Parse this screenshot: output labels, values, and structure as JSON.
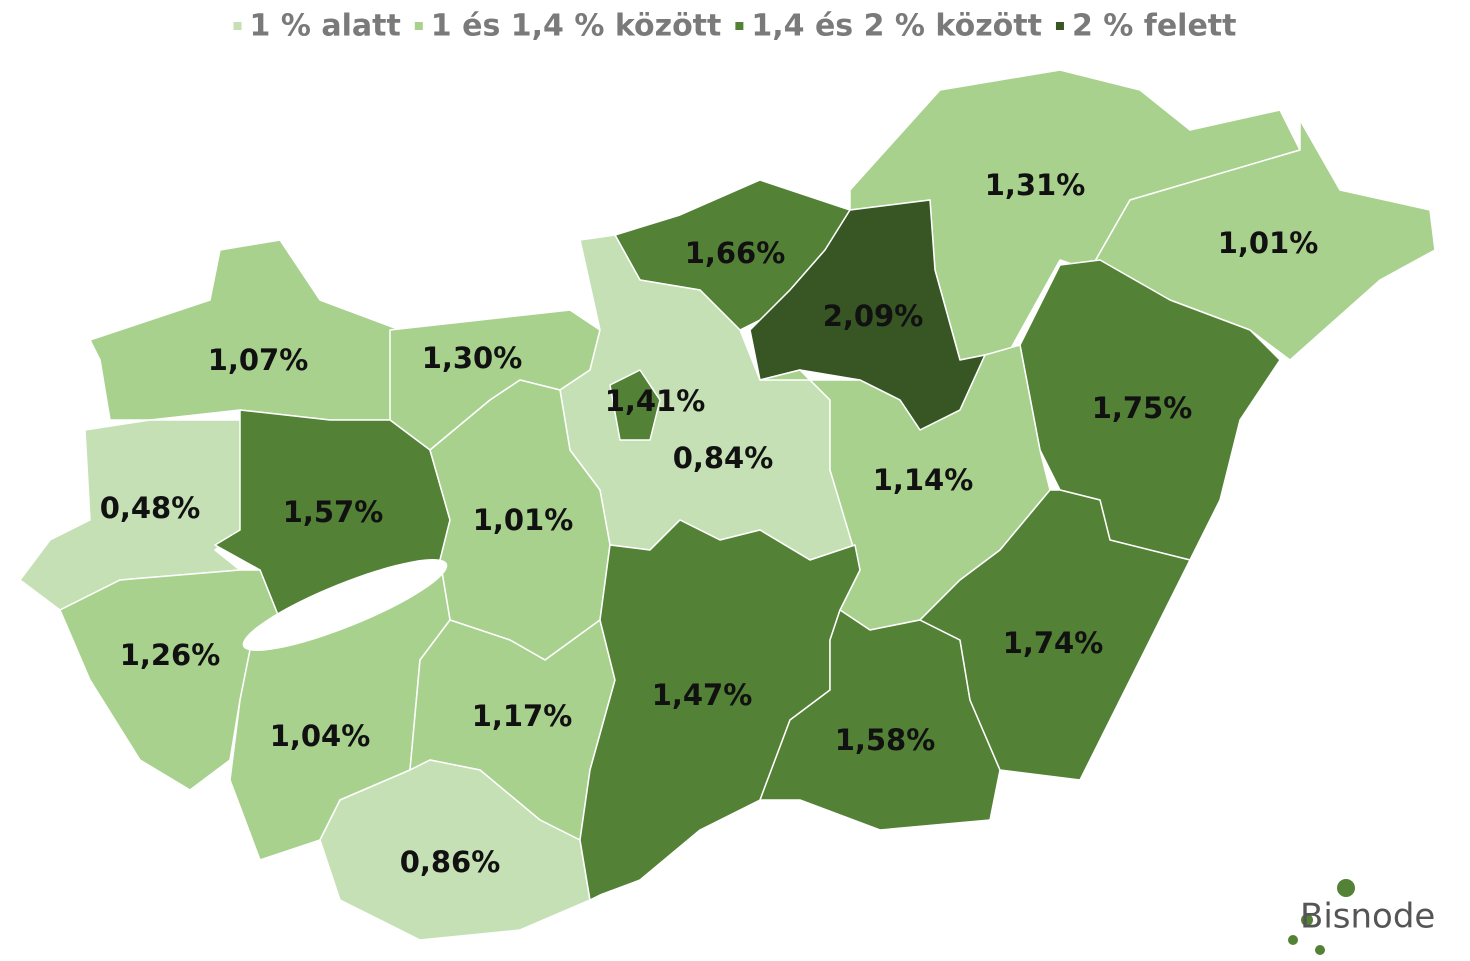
{
  "legend": [
    {
      "label": "1 % alatt",
      "color": "#c5e0b4"
    },
    {
      "label": "1 és 1,4 % között",
      "color": "#a9d18e"
    },
    {
      "label": "1,4 és 2 % között",
      "color": "#538135"
    },
    {
      "label": "2 % felett",
      "color": "#375623"
    }
  ],
  "regions": [
    {
      "label": "1,31%",
      "color": "#a9d18e"
    },
    {
      "label": "1,01%",
      "color": "#a9d18e"
    },
    {
      "label": "1,66%",
      "color": "#538135"
    },
    {
      "label": "2,09%",
      "color": "#375623"
    },
    {
      "label": "1,75%",
      "color": "#538135"
    },
    {
      "label": "1,07%",
      "color": "#a9d18e"
    },
    {
      "label": "1,30%",
      "color": "#a9d18e"
    },
    {
      "label": "0,84%",
      "color": "#c5e0b4"
    },
    {
      "label": "1,41%",
      "color": "#538135"
    },
    {
      "label": "1,14%",
      "color": "#a9d18e"
    },
    {
      "label": "0,48%",
      "color": "#c5e0b4"
    },
    {
      "label": "1,57%",
      "color": "#538135"
    },
    {
      "label": "1,01%",
      "color": "#a9d18e"
    },
    {
      "label": "1,26%",
      "color": "#a9d18e"
    },
    {
      "label": "1,04%",
      "color": "#a9d18e"
    },
    {
      "label": "1,17%",
      "color": "#a9d18e"
    },
    {
      "label": "0,86%",
      "color": "#c5e0b4"
    },
    {
      "label": "1,47%",
      "color": "#538135"
    },
    {
      "label": "1,58%",
      "color": "#538135"
    },
    {
      "label": "1,74%",
      "color": "#538135"
    }
  ],
  "logo": "Bisnode"
}
